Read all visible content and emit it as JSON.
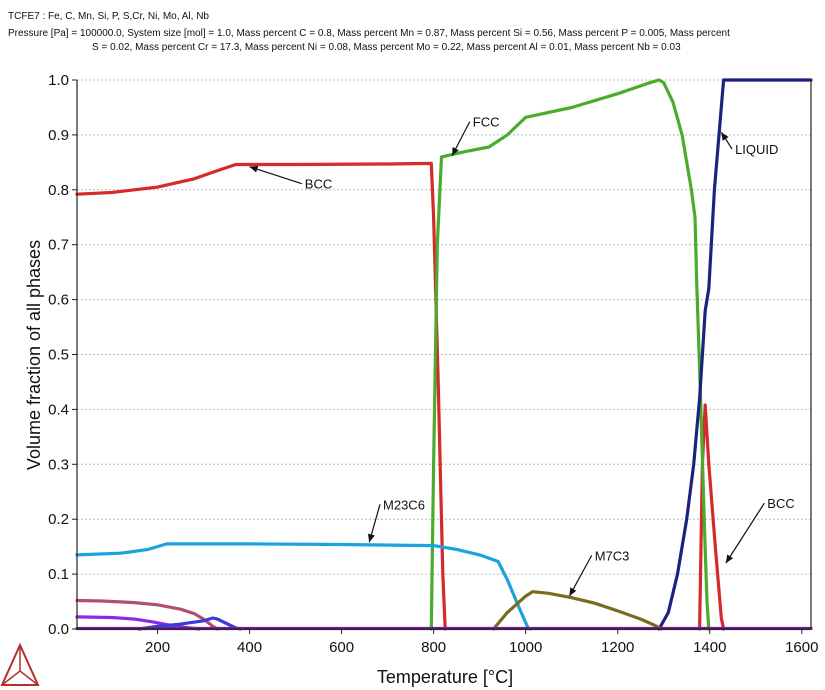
{
  "header": {
    "line1": "TCFE7 : Fe, C, Mn, Si, P, S,Cr, Ni, Mo, Al, Nb",
    "line2": "Pressure [Pa] = 100000.0, System size [mol] = 1.0, Mass percent C = 0.8, Mass percent Mn = 0.87, Mass percent Si = 0.56, Mass percent P = 0.005, Mass percent",
    "line3": "S = 0.02, Mass percent Cr = 17.3, Mass percent Ni = 0.08, Mass percent Mo = 0.22, Mass percent Al = 0.01, Mass percent Nb = 0.03"
  },
  "chart_data": {
    "type": "line",
    "title": "",
    "xlabel": "Temperature [°C]",
    "ylabel": "Volume fraction of all phases",
    "xlim": [
      25,
      1620
    ],
    "ylim": [
      0,
      1.0
    ],
    "x_ticks": [
      200,
      400,
      600,
      800,
      1000,
      1200,
      1400,
      1600
    ],
    "y_ticks": [
      0.0,
      0.1,
      0.2,
      0.3,
      0.4,
      0.5,
      0.6,
      0.7,
      0.8,
      0.9,
      1.0
    ],
    "x_tick_labels": [
      "200",
      "400",
      "600",
      "800",
      "1000",
      "1200",
      "1400",
      "1600"
    ],
    "y_tick_labels": [
      "0.0",
      "0.1",
      "0.2",
      "0.3",
      "0.4",
      "0.5",
      "0.6",
      "0.7",
      "0.8",
      "0.9",
      "1.0"
    ],
    "grid": "horizontal-dotted",
    "legend": "none",
    "series": [
      {
        "color": "#d42a2a",
        "points": [
          [
            25,
            0.792
          ],
          [
            100,
            0.795
          ],
          [
            200,
            0.805
          ],
          [
            280,
            0.82
          ],
          [
            330,
            0.835
          ],
          [
            370,
            0.846
          ],
          [
            500,
            0.846
          ],
          [
            700,
            0.847
          ],
          [
            795,
            0.848
          ],
          [
            800,
            0.75
          ],
          [
            810,
            0.45
          ],
          [
            820,
            0.1
          ],
          [
            825,
            0.0
          ]
        ]
      },
      {
        "color": "#d42a2a",
        "points": [
          [
            1378,
            0.0
          ],
          [
            1384,
            0.3
          ],
          [
            1390,
            0.408
          ],
          [
            1398,
            0.3
          ],
          [
            1412,
            0.15
          ],
          [
            1425,
            0.02
          ],
          [
            1430,
            0.0
          ]
        ]
      },
      {
        "color": "#4aab2e",
        "points": [
          [
            795,
            0.0
          ],
          [
            800,
            0.3
          ],
          [
            808,
            0.7
          ],
          [
            817,
            0.86
          ],
          [
            870,
            0.87
          ],
          [
            920,
            0.878
          ],
          [
            960,
            0.9
          ],
          [
            1000,
            0.932
          ],
          [
            1100,
            0.95
          ],
          [
            1200,
            0.975
          ],
          [
            1270,
            0.995
          ],
          [
            1290,
            1.0
          ],
          [
            1300,
            0.995
          ],
          [
            1320,
            0.96
          ],
          [
            1340,
            0.9
          ],
          [
            1360,
            0.8
          ],
          [
            1368,
            0.75
          ],
          [
            1372,
            0.62
          ],
          [
            1380,
            0.42
          ],
          [
            1388,
            0.2
          ],
          [
            1394,
            0.05
          ],
          [
            1398,
            0.0
          ]
        ]
      },
      {
        "color": "#1a237e",
        "points": [
          [
            1290,
            0.0
          ],
          [
            1310,
            0.03
          ],
          [
            1330,
            0.1
          ],
          [
            1350,
            0.2
          ],
          [
            1365,
            0.3
          ],
          [
            1378,
            0.42
          ],
          [
            1390,
            0.58
          ],
          [
            1398,
            0.62
          ],
          [
            1410,
            0.8
          ],
          [
            1420,
            0.9
          ],
          [
            1430,
            1.0
          ],
          [
            1620,
            1.0
          ]
        ]
      },
      {
        "color": "#1aa3dc",
        "points": [
          [
            25,
            0.135
          ],
          [
            120,
            0.138
          ],
          [
            180,
            0.145
          ],
          [
            220,
            0.155
          ],
          [
            400,
            0.155
          ],
          [
            600,
            0.154
          ],
          [
            800,
            0.152
          ],
          [
            850,
            0.145
          ],
          [
            900,
            0.135
          ],
          [
            940,
            0.123
          ],
          [
            960,
            0.09
          ],
          [
            985,
            0.04
          ],
          [
            1005,
            0.002
          ],
          [
            1010,
            0.0
          ]
        ]
      },
      {
        "color": "#7a6b1f",
        "points": [
          [
            930,
            0.0
          ],
          [
            960,
            0.03
          ],
          [
            1000,
            0.06
          ],
          [
            1015,
            0.068
          ],
          [
            1050,
            0.065
          ],
          [
            1100,
            0.057
          ],
          [
            1150,
            0.047
          ],
          [
            1200,
            0.033
          ],
          [
            1250,
            0.018
          ],
          [
            1280,
            0.007
          ],
          [
            1295,
            0.0
          ]
        ]
      },
      {
        "color": "#b0506e",
        "points": [
          [
            25,
            0.052
          ],
          [
            80,
            0.051
          ],
          [
            150,
            0.048
          ],
          [
            200,
            0.044
          ],
          [
            250,
            0.036
          ],
          [
            280,
            0.028
          ],
          [
            300,
            0.018
          ],
          [
            320,
            0.005
          ],
          [
            330,
            0.0
          ]
        ]
      },
      {
        "color": "#8a2be2",
        "points": [
          [
            25,
            0.022
          ],
          [
            100,
            0.021
          ],
          [
            150,
            0.018
          ],
          [
            190,
            0.013
          ],
          [
            220,
            0.008
          ],
          [
            260,
            0.003
          ],
          [
            290,
            0.0
          ]
        ]
      },
      {
        "color": "#3b3bdc",
        "points": [
          [
            160,
            0.0
          ],
          [
            200,
            0.005
          ],
          [
            250,
            0.009
          ],
          [
            300,
            0.015
          ],
          [
            320,
            0.02
          ],
          [
            330,
            0.018
          ],
          [
            350,
            0.01
          ],
          [
            370,
            0.002
          ],
          [
            380,
            0.0
          ]
        ]
      },
      {
        "color": "#7a1f9a",
        "points": [
          [
            25,
            0.001
          ],
          [
            1620,
            0.001
          ]
        ]
      }
    ],
    "annotations": [
      {
        "label": "BCC",
        "label_at": [
          520,
          0.802
        ],
        "arrow_to": [
          400,
          0.842
        ]
      },
      {
        "label": "FCC",
        "label_at": [
          885,
          0.915
        ],
        "arrow_to": [
          840,
          0.862
        ]
      },
      {
        "label": "LIQUID",
        "label_at": [
          1455,
          0.865
        ],
        "arrow_to": [
          1425,
          0.905
        ]
      },
      {
        "label": "M23C6",
        "label_at": [
          690,
          0.218
        ],
        "arrow_to": [
          660,
          0.158
        ]
      },
      {
        "label": "M7C3",
        "label_at": [
          1150,
          0.125
        ],
        "arrow_to": [
          1095,
          0.06
        ]
      },
      {
        "label": "BCC",
        "label_at": [
          1525,
          0.22
        ],
        "arrow_to": [
          1435,
          0.12
        ]
      }
    ]
  },
  "colors": {
    "grid": "#b8b8b8",
    "axis": "#222222",
    "logo": "#b03030"
  },
  "logo": {
    "icon": "thermo-calc-logo-icon"
  }
}
